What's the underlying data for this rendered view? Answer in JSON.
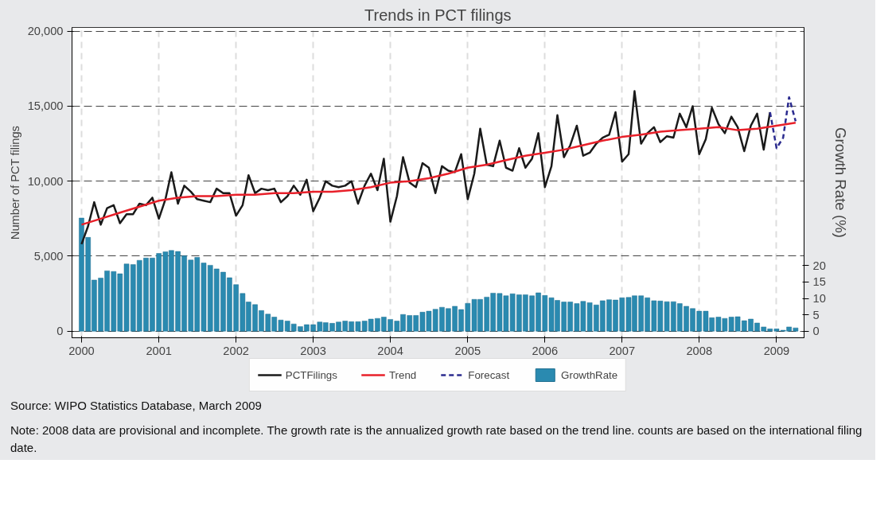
{
  "chart_data": {
    "type": "line",
    "title": "Trends in PCT filings",
    "ylabel": "Number of PCT filings",
    "y2label": "Growth Rate (%)",
    "x": [
      "2000-01",
      "2000-02",
      "2000-03",
      "2000-04",
      "2000-05",
      "2000-06",
      "2000-07",
      "2000-08",
      "2000-09",
      "2000-10",
      "2000-11",
      "2000-12",
      "2001-01",
      "2001-02",
      "2001-03",
      "2001-04",
      "2001-05",
      "2001-06",
      "2001-07",
      "2001-08",
      "2001-09",
      "2001-10",
      "2001-11",
      "2001-12",
      "2002-01",
      "2002-02",
      "2002-03",
      "2002-04",
      "2002-05",
      "2002-06",
      "2002-07",
      "2002-08",
      "2002-09",
      "2002-10",
      "2002-11",
      "2002-12",
      "2003-01",
      "2003-02",
      "2003-03",
      "2003-04",
      "2003-05",
      "2003-06",
      "2003-07",
      "2003-08",
      "2003-09",
      "2003-10",
      "2003-11",
      "2003-12",
      "2004-01",
      "2004-02",
      "2004-03",
      "2004-04",
      "2004-05",
      "2004-06",
      "2004-07",
      "2004-08",
      "2004-09",
      "2004-10",
      "2004-11",
      "2004-12",
      "2005-01",
      "2005-02",
      "2005-03",
      "2005-04",
      "2005-05",
      "2005-06",
      "2005-07",
      "2005-08",
      "2005-09",
      "2005-10",
      "2005-11",
      "2005-12",
      "2006-01",
      "2006-02",
      "2006-03",
      "2006-04",
      "2006-05",
      "2006-06",
      "2006-07",
      "2006-08",
      "2006-09",
      "2006-10",
      "2006-11",
      "2006-12",
      "2007-01",
      "2007-02",
      "2007-03",
      "2007-04",
      "2007-05",
      "2007-06",
      "2007-07",
      "2007-08",
      "2007-09",
      "2007-10",
      "2007-11",
      "2007-12",
      "2008-01",
      "2008-02",
      "2008-03",
      "2008-04",
      "2008-05",
      "2008-06",
      "2008-07",
      "2008-08",
      "2008-09",
      "2008-10",
      "2008-11",
      "2008-12"
    ],
    "series": [
      {
        "name": "PCTFilings",
        "color": "#1a1a1a",
        "values": [
          5800,
          7000,
          8600,
          7100,
          8200,
          8400,
          7200,
          7800,
          7800,
          8500,
          8400,
          8900,
          7500,
          8800,
          10600,
          8500,
          9700,
          9300,
          8800,
          8700,
          8600,
          9500,
          9200,
          9200,
          7700,
          8400,
          10400,
          9200,
          9500,
          9400,
          9500,
          8600,
          9000,
          9700,
          9100,
          10100,
          8000,
          8900,
          10000,
          9700,
          9600,
          9700,
          10000,
          8500,
          9700,
          10500,
          9400,
          11500,
          7300,
          9000,
          11600,
          9900,
          9600,
          11200,
          10900,
          9200,
          11000,
          10700,
          10600,
          11800,
          8800,
          10500,
          13500,
          11100,
          11000,
          12700,
          10900,
          10700,
          12200,
          10900,
          11500,
          13200,
          9600,
          11000,
          14400,
          11600,
          12400,
          13700,
          11700,
          11900,
          12500,
          12900,
          13100,
          14600,
          11300,
          11800,
          16000,
          12500,
          13200,
          13600,
          12600,
          13000,
          12900,
          14500,
          13600,
          15000,
          11800,
          12800,
          14900,
          13800,
          13200,
          14300,
          13600,
          12000,
          13700,
          14500,
          12100,
          14600
        ]
      },
      {
        "name": "Trend",
        "color": "#e8202a",
        "x": [
          "2000-01",
          "2000-04",
          "2000-07",
          "2000-10",
          "2001-01",
          "2001-04",
          "2001-07",
          "2001-10",
          "2002-01",
          "2002-04",
          "2002-07",
          "2002-10",
          "2003-01",
          "2003-04",
          "2003-07",
          "2003-10",
          "2004-01",
          "2004-04",
          "2004-07",
          "2004-10",
          "2005-01",
          "2005-04",
          "2005-07",
          "2005-10",
          "2006-01",
          "2006-04",
          "2006-07",
          "2006-10",
          "2007-01",
          "2007-04",
          "2007-07",
          "2007-10",
          "2008-01",
          "2008-04",
          "2008-07",
          "2008-10",
          "2009-01",
          "2009-04"
        ],
        "values": [
          7100,
          7500,
          7900,
          8300,
          8700,
          8900,
          9000,
          9000,
          9100,
          9100,
          9200,
          9200,
          9300,
          9300,
          9400,
          9600,
          9900,
          10000,
          10200,
          10500,
          10900,
          11100,
          11400,
          11700,
          11900,
          12100,
          12400,
          12700,
          12950,
          13100,
          13300,
          13400,
          13500,
          13600,
          13400,
          13500,
          13700,
          13900
        ]
      },
      {
        "name": "Forecast",
        "color": "#2b2b8f",
        "line_style": "dashed",
        "x": [
          "2008-12",
          "2009-01",
          "2009-02",
          "2009-03",
          "2009-04"
        ],
        "values": [
          14600,
          12200,
          12900,
          15600,
          14000
        ]
      },
      {
        "name": "GrowthRate",
        "type": "bar",
        "axis": "y2",
        "color": "#2a8ab0",
        "x": [
          "2000-01",
          "2000-02",
          "2000-03",
          "2000-04",
          "2000-05",
          "2000-06",
          "2000-07",
          "2000-08",
          "2000-09",
          "2000-10",
          "2000-11",
          "2000-12",
          "2001-01",
          "2001-02",
          "2001-03",
          "2001-04",
          "2001-05",
          "2001-06",
          "2001-07",
          "2001-08",
          "2001-09",
          "2001-10",
          "2001-11",
          "2001-12",
          "2002-01",
          "2002-02",
          "2002-03",
          "2002-04",
          "2002-05",
          "2002-06",
          "2002-07",
          "2002-08",
          "2002-09",
          "2002-10",
          "2002-11",
          "2002-12",
          "2003-01",
          "2003-02",
          "2003-03",
          "2003-04",
          "2003-05",
          "2003-06",
          "2003-07",
          "2003-08",
          "2003-09",
          "2003-10",
          "2003-11",
          "2003-12",
          "2004-01",
          "2004-02",
          "2004-03",
          "2004-04",
          "2004-05",
          "2004-06",
          "2004-07",
          "2004-08",
          "2004-09",
          "2004-10",
          "2004-11",
          "2004-12",
          "2005-01",
          "2005-02",
          "2005-03",
          "2005-04",
          "2005-05",
          "2005-06",
          "2005-07",
          "2005-08",
          "2005-09",
          "2005-10",
          "2005-11",
          "2005-12",
          "2006-01",
          "2006-02",
          "2006-03",
          "2006-04",
          "2006-05",
          "2006-06",
          "2006-07",
          "2006-08",
          "2006-09",
          "2006-10",
          "2006-11",
          "2006-12",
          "2007-01",
          "2007-02",
          "2007-03",
          "2007-04",
          "2007-05",
          "2007-06",
          "2007-07",
          "2007-08",
          "2007-09",
          "2007-10",
          "2007-11",
          "2007-12",
          "2008-01",
          "2008-02",
          "2008-03",
          "2008-04",
          "2008-05",
          "2008-06",
          "2008-07",
          "2008-08",
          "2008-09",
          "2008-10",
          "2008-11",
          "2008-12",
          "2009-01",
          "2009-02",
          "2009-03",
          "2009-04"
        ],
        "values": [
          34.5,
          28.6,
          15.6,
          16.2,
          18.4,
          18.2,
          17.5,
          20.5,
          20.3,
          21.6,
          22.3,
          22.3,
          23.7,
          24.2,
          24.6,
          24.3,
          23.0,
          21.7,
          22.5,
          20.8,
          20.1,
          19.0,
          18.0,
          16.3,
          14.2,
          11.5,
          8.9,
          8.1,
          6.3,
          5.2,
          4.3,
          3.4,
          3.1,
          2.2,
          1.4,
          2.0,
          2.0,
          2.8,
          2.6,
          2.4,
          2.8,
          3.1,
          2.9,
          2.9,
          3.1,
          3.7,
          3.9,
          4.3,
          3.6,
          3.1,
          5.1,
          4.8,
          4.8,
          5.8,
          6.1,
          6.7,
          7.3,
          6.9,
          7.6,
          6.6,
          8.5,
          9.7,
          9.7,
          10.4,
          11.6,
          11.5,
          10.8,
          11.4,
          11.1,
          11.1,
          10.8,
          11.7,
          10.9,
          10.2,
          9.4,
          8.9,
          8.9,
          8.4,
          9.1,
          8.7,
          8.0,
          9.3,
          9.6,
          9.5,
          10.2,
          10.3,
          10.8,
          10.8,
          10.2,
          9.3,
          9.2,
          9.0,
          9.0,
          8.4,
          7.6,
          6.9,
          6.1,
          6.1,
          4.1,
          4.3,
          3.9,
          4.3,
          4.4,
          3.2,
          3.7,
          2.5,
          1.3,
          0.7,
          0.7,
          0.3,
          1.3,
          1.0
        ]
      }
    ],
    "xlim": [
      "1999-11-17",
      "2009-05-11"
    ],
    "xticks": [
      {
        "value": "2000-01-01",
        "label": "2000"
      },
      {
        "value": "2001-01-01",
        "label": "2001"
      },
      {
        "value": "2002-01-01",
        "label": "2002"
      },
      {
        "value": "2003-01-01",
        "label": "2003"
      },
      {
        "value": "2004-01-01",
        "label": "2004"
      },
      {
        "value": "2005-01-01",
        "label": "2005"
      },
      {
        "value": "2006-01-01",
        "label": "2006"
      },
      {
        "value": "2007-01-01",
        "label": "2007"
      },
      {
        "value": "2008-01-01",
        "label": "2008"
      },
      {
        "value": "2009-01-01",
        "label": "2009"
      }
    ],
    "ylim": [
      -440,
      20250
    ],
    "yticks": [
      0,
      {
        "value": 5000,
        "label": "5,000"
      },
      {
        "value": 10000,
        "label": "10,000"
      },
      {
        "value": 15000,
        "label": "15,000"
      },
      {
        "value": 20000,
        "label": "20,000"
      }
    ],
    "y2lim": [
      -2,
      92.6
    ],
    "y2ticks": [
      0,
      5,
      10,
      15,
      20
    ],
    "grid": true,
    "legend": "bottom",
    "annotations": [
      "Source: WIPO Statistics Database, March 2009",
      "Note: 2008 data are provisional and incomplete. The growth rate is the annualized growth rate based on the trend line. counts are based on the international filing date."
    ]
  }
}
